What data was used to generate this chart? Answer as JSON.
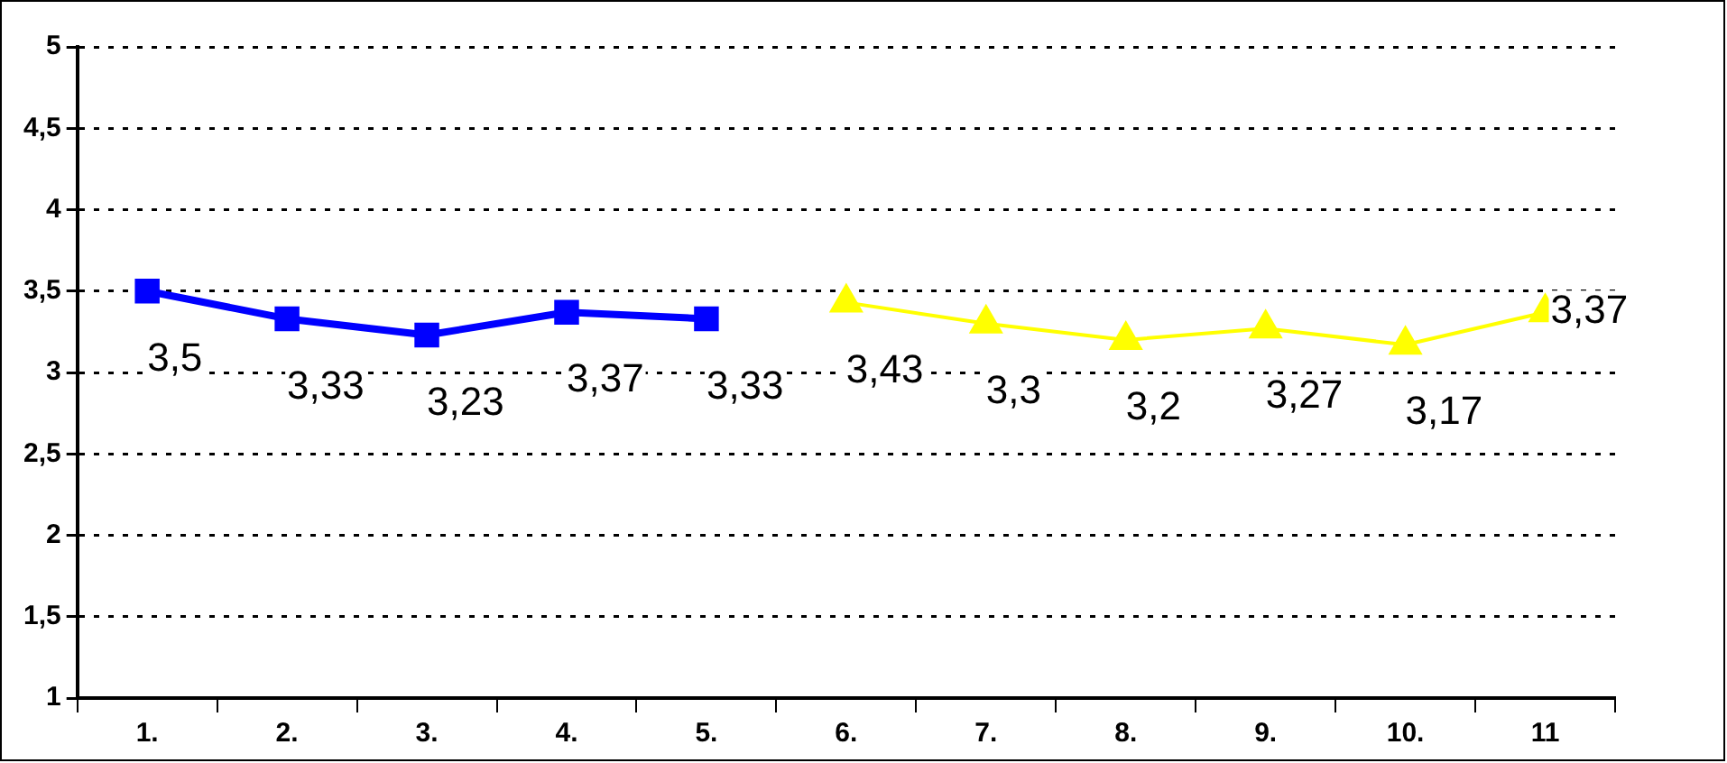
{
  "chart_data": {
    "type": "line",
    "categories": [
      "1.",
      "2.",
      "3.",
      "4.",
      "5.",
      "6.",
      "7.",
      "8.",
      "9.",
      "10.",
      "11"
    ],
    "series": [
      {
        "color": "#0000ff",
        "marker": "square",
        "values": [
          3.5,
          3.33,
          3.23,
          3.37,
          3.33,
          null,
          null,
          null,
          null,
          null,
          null
        ],
        "value_labels": [
          "3,5",
          "3,33",
          "3,23",
          "3,37",
          "3,33",
          null,
          null,
          null,
          null,
          null,
          null
        ]
      },
      {
        "color": "#ffff00",
        "marker": "triangle",
        "values": [
          null,
          null,
          null,
          null,
          null,
          3.43,
          3.3,
          3.2,
          3.27,
          3.17,
          3.37
        ],
        "value_labels": [
          null,
          null,
          null,
          null,
          null,
          "3,43",
          "3,3",
          "3,2",
          "3,27",
          "3,17",
          "3,37"
        ]
      }
    ],
    "ylim": [
      1,
      5
    ],
    "yticks": [
      1,
      {
        "value": 1.5,
        "label": "1,5"
      },
      2,
      {
        "value": 2.5,
        "label": "2,5"
      },
      3,
      {
        "value": 3.5,
        "label": "3,5"
      },
      4,
      {
        "value": 4.5,
        "label": "4,5"
      },
      5
    ],
    "grid": "y",
    "line_style": "solid",
    "legend": false
  }
}
